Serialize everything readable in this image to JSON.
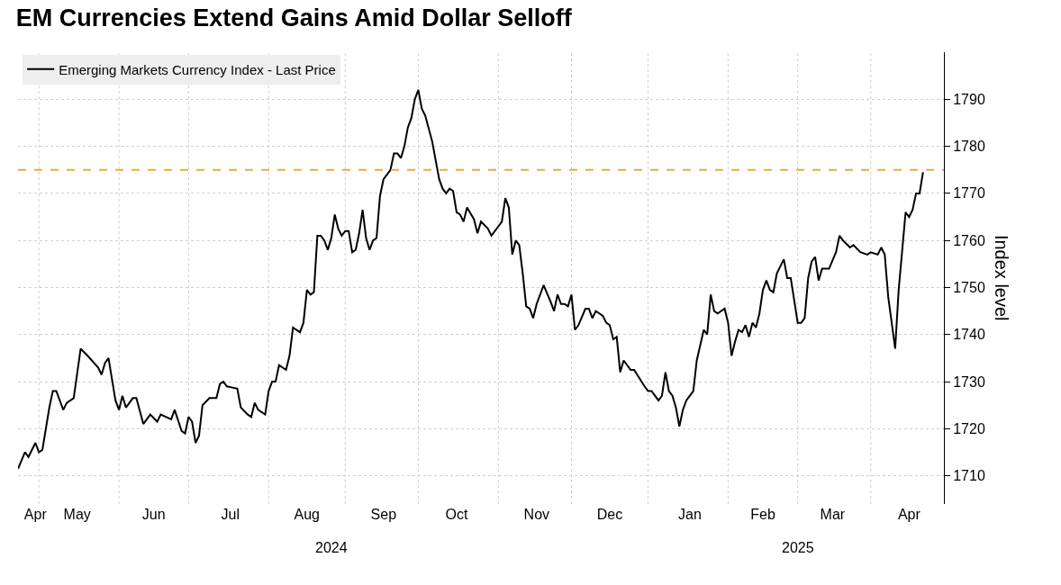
{
  "chart_data": {
    "type": "line",
    "title": "EM Currencies Extend Gains Amid Dollar Selloff",
    "ylabel": "Index level",
    "x": [
      "2024-04-23",
      "2024-04-25",
      "2024-04-26",
      "2024-04-30",
      "2024-05-01",
      "2024-05-02",
      "2024-05-06",
      "2024-05-07",
      "2024-05-08",
      "2024-05-10",
      "2024-05-13",
      "2024-05-15",
      "2024-05-17",
      "2024-05-21",
      "2024-05-24",
      "2024-05-27",
      "2024-05-28",
      "2024-05-29",
      "2024-05-31",
      "2024-06-03",
      "2024-06-04",
      "2024-06-05",
      "2024-06-07",
      "2024-06-10",
      "2024-06-12",
      "2024-06-14",
      "2024-06-18",
      "2024-06-19",
      "2024-06-24",
      "2024-06-25",
      "2024-06-27",
      "2024-06-28",
      "2024-07-01",
      "2024-07-02",
      "2024-07-03",
      "2024-07-04",
      "2024-07-05",
      "2024-07-09",
      "2024-07-11",
      "2024-07-12",
      "2024-07-15",
      "2024-07-16",
      "2024-07-19",
      "2024-07-22",
      "2024-07-24",
      "2024-07-25",
      "2024-07-26",
      "2024-07-29",
      "2024-07-31",
      "2024-08-01",
      "2024-08-02",
      "2024-08-05",
      "2024-08-06",
      "2024-08-08",
      "2024-08-09",
      "2024-08-12",
      "2024-08-14",
      "2024-08-15",
      "2024-08-16",
      "2024-08-19",
      "2024-08-20",
      "2024-08-21",
      "2024-08-22",
      "2024-08-23",
      "2024-08-26",
      "2024-08-27",
      "2024-08-28",
      "2024-08-29",
      "2024-08-30",
      "2024-09-02",
      "2024-09-03",
      "2024-09-04",
      "2024-09-05",
      "2024-09-06",
      "2024-09-09",
      "2024-09-10",
      "2024-09-11",
      "2024-09-12",
      "2024-09-13",
      "2024-09-16",
      "2024-09-17",
      "2024-09-19",
      "2024-09-20",
      "2024-09-23",
      "2024-09-24",
      "2024-09-25",
      "2024-09-26",
      "2024-09-27",
      "2024-09-30",
      "2024-10-01",
      "2024-10-02",
      "2024-10-03",
      "2024-10-07",
      "2024-10-09",
      "2024-10-10",
      "2024-10-11",
      "2024-10-14",
      "2024-10-15",
      "2024-10-16",
      "2024-10-17",
      "2024-10-18",
      "2024-10-21",
      "2024-10-23",
      "2024-10-24",
      "2024-10-25",
      "2024-10-29",
      "2024-10-30",
      "2024-11-01",
      "2024-11-04",
      "2024-11-05",
      "2024-11-06",
      "2024-11-07",
      "2024-11-08",
      "2024-11-11",
      "2024-11-12",
      "2024-11-13",
      "2024-11-14",
      "2024-11-15",
      "2024-11-18",
      "2024-11-20",
      "2024-11-22",
      "2024-11-25",
      "2024-11-26",
      "2024-11-27",
      "2024-11-28",
      "2024-11-29",
      "2024-12-02",
      "2024-12-03",
      "2024-12-04",
      "2024-12-06",
      "2024-12-09",
      "2024-12-10",
      "2024-12-11",
      "2024-12-12",
      "2024-12-13",
      "2024-12-16",
      "2024-12-17",
      "2024-12-18",
      "2024-12-19",
      "2024-12-20",
      "2024-12-23",
      "2024-12-25",
      "2024-12-26",
      "2024-12-31",
      "2025-01-01",
      "2025-01-02",
      "2025-01-06",
      "2025-01-07",
      "2025-01-08",
      "2025-01-09",
      "2025-01-10",
      "2025-01-13",
      "2025-01-14",
      "2025-01-15",
      "2025-01-16",
      "2025-01-20",
      "2025-01-21",
      "2025-01-23",
      "2025-01-24",
      "2025-01-27",
      "2025-01-28",
      "2025-01-29",
      "2025-01-31",
      "2025-02-03",
      "2025-02-04",
      "2025-02-05",
      "2025-02-06",
      "2025-02-07",
      "2025-02-10",
      "2025-02-11",
      "2025-02-12",
      "2025-02-13",
      "2025-02-14",
      "2025-02-17",
      "2025-02-18",
      "2025-02-19",
      "2025-02-20",
      "2025-02-21",
      "2025-02-25",
      "2025-02-26",
      "2025-02-27",
      "2025-03-03",
      "2025-03-04",
      "2025-03-05",
      "2025-03-06",
      "2025-03-07",
      "2025-03-10",
      "2025-03-11",
      "2025-03-12",
      "2025-03-14",
      "2025-03-18",
      "2025-03-19",
      "2025-03-20",
      "2025-03-24",
      "2025-03-25",
      "2025-03-27",
      "2025-03-31",
      "2025-04-01",
      "2025-04-03",
      "2025-04-04",
      "2025-04-07",
      "2025-04-08",
      "2025-04-10",
      "2025-04-11",
      "2025-04-15",
      "2025-04-16",
      "2025-04-17",
      "2025-04-18",
      "2025-04-21",
      "2025-04-22"
    ],
    "series": [
      {
        "name": "Emerging Markets Currency Index - Last Price",
        "color": "#000000",
        "values": [
          1711.5,
          1715,
          1714,
          1717,
          1715,
          1715.5,
          1724.5,
          1728,
          1728,
          1724,
          1725.5,
          1726.5,
          1737,
          1735.5,
          1733,
          1731.5,
          1734,
          1735,
          1726,
          1724,
          1727,
          1724.5,
          1726.5,
          1726.5,
          1721,
          1723,
          1721.5,
          1723,
          1722,
          1724,
          1719.5,
          1719,
          1722.5,
          1721.5,
          1717,
          1718.5,
          1725,
          1726.5,
          1726.5,
          1729.5,
          1730,
          1729,
          1728.5,
          1724.5,
          1723,
          1722.5,
          1725.5,
          1724,
          1723,
          1728,
          1730,
          1730,
          1733.5,
          1732.5,
          1735.5,
          1741.5,
          1740.5,
          1742.5,
          1749.5,
          1748.5,
          1749,
          1761,
          1761,
          1760,
          1758,
          1760.5,
          1765.5,
          1762.5,
          1761,
          1762,
          1762,
          1757.5,
          1758,
          1761.5,
          1766.5,
          1760.5,
          1758,
          1760,
          1760.5,
          1769.5,
          1773,
          1775,
          1778.5,
          1778.5,
          1777.5,
          1780,
          1784,
          1786,
          1790,
          1792,
          1788,
          1786.5,
          1781,
          1773,
          1771,
          1770,
          1771,
          1770.5,
          1766,
          1765.5,
          1764,
          1767,
          1764.5,
          1761.5,
          1764,
          1762.5,
          1761,
          1763,
          1764,
          1769,
          1767,
          1757,
          1760,
          1759,
          1753,
          1746,
          1745.5,
          1743.5,
          1746.5,
          1750.5,
          1747,
          1745,
          1748.5,
          1746.5,
          1746.5,
          1746,
          1748.5,
          1741,
          1742,
          1745.5,
          1745.5,
          1743.5,
          1745,
          1744.5,
          1744,
          1742.5,
          1742,
          1739,
          1739.5,
          1732,
          1734.5,
          1732.5,
          1732.5,
          1729,
          1728,
          1728,
          1726,
          1727,
          1732,
          1728,
          1727,
          1724.5,
          1720.5,
          1724,
          1726,
          1728,
          1734.5,
          1741,
          1740,
          1748.5,
          1745,
          1744.5,
          1745.5,
          1742.5,
          1735.5,
          1738.5,
          1741,
          1740.5,
          1742,
          1739.5,
          1742.5,
          1741.5,
          1744.5,
          1749.5,
          1751.5,
          1749.5,
          1749,
          1753,
          1756,
          1752,
          1752,
          1742.5,
          1742.5,
          1743.5,
          1752,
          1755.5,
          1756.5,
          1751.5,
          1754,
          1754,
          1757.5,
          1761,
          1760,
          1758.5,
          1759,
          1757.5,
          1757,
          1757.5,
          1757,
          1758.5,
          1757,
          1748,
          1737,
          1749.5,
          1766,
          1765,
          1766.5,
          1770,
          1770,
          1774.5
        ]
      }
    ],
    "xlim": [
      "2024-04-23",
      "2025-04-30"
    ],
    "xticks": [
      {
        "value": "2024-04-30",
        "label": "Apr"
      },
      {
        "value": "2024-05-16",
        "label": "May"
      },
      {
        "value": "2024-06-17",
        "label": "Jun"
      },
      {
        "value": "2024-07-17",
        "label": "Jul"
      },
      {
        "value": "2024-08-16",
        "label": "Aug"
      },
      {
        "value": "2024-09-17",
        "label": "Sep"
      },
      {
        "value": "2024-10-16",
        "label": "Oct"
      },
      {
        "value": "2024-11-18",
        "label": "Nov"
      },
      {
        "value": "2024-12-17",
        "label": "Dec"
      },
      {
        "value": "2025-01-17",
        "label": "Jan"
      },
      {
        "value": "2025-02-17",
        "label": "Feb"
      },
      {
        "value": "2025-03-17",
        "label": "Mar"
      },
      {
        "value": "2025-04-16",
        "label": "Apr"
      },
      {
        "value": "2024-05-01",
        "label": null
      },
      {
        "value": "2024-06-03",
        "label": null
      },
      {
        "value": "2024-07-01",
        "label": null
      },
      {
        "value": "2024-08-01",
        "label": null
      },
      {
        "value": "2024-09-02",
        "label": null
      },
      {
        "value": "2024-10-01",
        "label": null
      },
      {
        "value": "2024-11-01",
        "label": null
      },
      {
        "value": "2024-12-02",
        "label": null
      },
      {
        "value": "2025-01-01",
        "label": null
      },
      {
        "value": "2025-02-03",
        "label": null
      },
      {
        "value": "2025-03-03",
        "label": null
      },
      {
        "value": "2025-04-01",
        "label": null
      }
    ],
    "ylim": [
      1704,
      1800
    ],
    "yticks": [
      1710,
      1720,
      1730,
      1740,
      1750,
      1760,
      1770,
      1780,
      1790
    ],
    "ref_lines": [
      {
        "axis": "y",
        "value": 1775,
        "color": "#f2a93b",
        "line_style": "dashed"
      }
    ],
    "annotations": [
      "2024",
      "2025"
    ],
    "grid": true,
    "legend": "top left",
    "line_style": "solid",
    "marker": "none"
  }
}
